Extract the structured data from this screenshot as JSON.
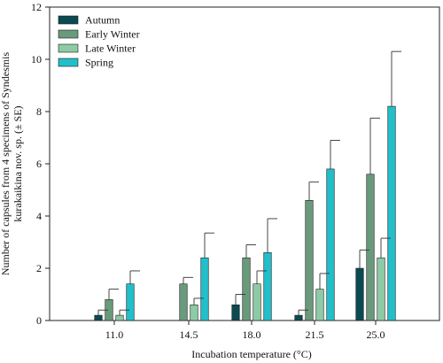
{
  "chart_data": {
    "type": "bar",
    "title": "",
    "xlabel": "Incubation temperature (°C)",
    "ylabel_line1": "Number of capsules from 4 specimens of Syndesmis",
    "ylabel_line2": "kurakaikina nov. sp. (± SE)",
    "ylim": [
      0,
      12
    ],
    "yticks": [
      0,
      2,
      4,
      6,
      8,
      10,
      12
    ],
    "grid": false,
    "legend_position": "top-left",
    "categories": [
      "11.0",
      "14.5",
      "18.0",
      "21.5",
      "25.0"
    ],
    "series": [
      {
        "name": "Autumn",
        "color": "#0b4a52",
        "values": [
          0.2,
          0.0,
          0.6,
          0.2,
          2.0
        ],
        "errors": [
          0.2,
          0.0,
          0.4,
          0.2,
          0.7
        ]
      },
      {
        "name": "Early Winter",
        "color": "#6a9a7c",
        "values": [
          0.8,
          1.4,
          2.4,
          4.6,
          5.6
        ],
        "errors": [
          0.4,
          0.25,
          0.5,
          0.7,
          2.15
        ]
      },
      {
        "name": "Late Winter",
        "color": "#8ccba6",
        "values": [
          0.2,
          0.6,
          1.4,
          1.2,
          2.4
        ],
        "errors": [
          0.2,
          0.25,
          0.5,
          0.6,
          0.75
        ]
      },
      {
        "name": "Spring",
        "color": "#22bfca",
        "values": [
          1.4,
          2.4,
          2.6,
          5.8,
          8.2
        ],
        "errors": [
          0.5,
          0.95,
          1.3,
          1.1,
          2.1
        ]
      }
    ]
  }
}
